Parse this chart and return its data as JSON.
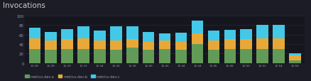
{
  "title": "Invocations",
  "background_color": "#1c1c27",
  "plot_bg_color": "#16161f",
  "grid_color": "#2d2d3f",
  "text_color": "#9999aa",
  "title_color": "#cccccc",
  "ylim": [
    0,
    100
  ],
  "yticks": [
    0,
    20,
    40,
    60,
    80,
    100
  ],
  "x_labels": [
    "12:28",
    "12:28",
    "12:30",
    "12:32",
    "12:34",
    "12:36",
    "12:38",
    "12:40",
    "12:42",
    "12:44",
    "12:44",
    "12:46",
    "12:48",
    "12:50",
    "12:52",
    "12:54",
    "12:56"
  ],
  "series_a_color": "#629b58",
  "series_b_color": "#e8a838",
  "series_c_color": "#43c8e8",
  "legend_labels": [
    "metrics-dev-a",
    "metrics-dev-b",
    "metrics-dev-c"
  ],
  "bars_a": [
    30,
    28,
    30,
    30,
    30,
    28,
    32,
    28,
    30,
    28,
    40,
    28,
    30,
    30,
    30,
    30,
    6
  ],
  "bars_b": [
    22,
    20,
    20,
    22,
    18,
    20,
    18,
    16,
    18,
    16,
    22,
    20,
    20,
    20,
    22,
    22,
    10
  ],
  "bars_c": [
    22,
    18,
    22,
    26,
    20,
    30,
    28,
    22,
    14,
    20,
    28,
    20,
    20,
    22,
    28,
    28,
    4
  ]
}
